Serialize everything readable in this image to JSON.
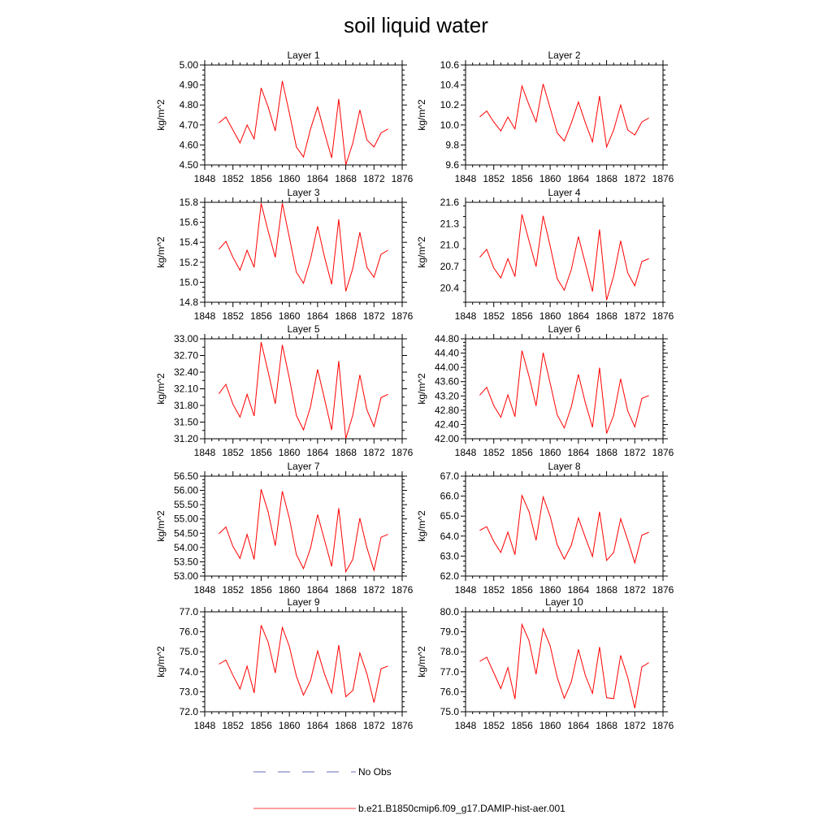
{
  "figure": {
    "title": "soil liquid water"
  },
  "legend": {
    "entries": [
      {
        "label": "No Obs",
        "color": "#6b6bb5",
        "style": "dashed"
      },
      {
        "label": "b.e21.B1850cmip6.f09_g17.DAMIP-hist-aer.001",
        "color": "#ff4040",
        "style": "solid"
      }
    ]
  },
  "chart_data": [
    {
      "type": "line",
      "title": "Layer 1",
      "ylabel": "kg/m^2",
      "xlim": [
        1848,
        1876
      ],
      "xticks": [
        1848,
        1852,
        1856,
        1860,
        1864,
        1868,
        1872,
        1876
      ],
      "ylim": [
        4.5,
        5.0
      ],
      "yticks": [
        "4.50",
        "4.60",
        "4.70",
        "4.80",
        "4.90",
        "5.00"
      ],
      "yminor_per_major": 4,
      "series": [
        {
          "color": "#ff0000",
          "x": [
            1850,
            1851,
            1852,
            1853,
            1854,
            1855,
            1856,
            1857,
            1858,
            1859,
            1860,
            1861,
            1862,
            1863,
            1864,
            1865,
            1866,
            1867,
            1868,
            1869,
            1870,
            1871,
            1872,
            1873,
            1874
          ],
          "y": [
            4.71,
            4.74,
            4.675,
            4.61,
            4.7,
            4.63,
            4.885,
            4.79,
            4.67,
            4.92,
            4.76,
            4.59,
            4.54,
            4.68,
            4.79,
            4.66,
            4.535,
            4.83,
            4.5,
            4.61,
            4.775,
            4.625,
            4.59,
            4.66,
            4.68
          ]
        }
      ]
    },
    {
      "type": "line",
      "title": "Layer 2",
      "ylabel": "kg/m^2",
      "xlim": [
        1848,
        1876
      ],
      "xticks": [
        1848,
        1852,
        1856,
        1860,
        1864,
        1868,
        1872,
        1876
      ],
      "ylim": [
        9.6,
        10.6
      ],
      "yticks": [
        "9.6",
        "9.8",
        "10.0",
        "10.2",
        "10.4",
        "10.6"
      ],
      "yminor_per_major": 4,
      "series": [
        {
          "color": "#ff0000",
          "x": [
            1850,
            1851,
            1852,
            1853,
            1854,
            1855,
            1856,
            1857,
            1858,
            1859,
            1860,
            1861,
            1862,
            1863,
            1864,
            1865,
            1866,
            1867,
            1868,
            1869,
            1870,
            1871,
            1872,
            1873,
            1874
          ],
          "y": [
            10.08,
            10.14,
            10.03,
            9.94,
            10.08,
            9.96,
            10.39,
            10.2,
            10.03,
            10.41,
            10.17,
            9.92,
            9.84,
            10.02,
            10.23,
            10.02,
            9.83,
            10.29,
            9.78,
            9.95,
            10.2,
            9.95,
            9.9,
            10.03,
            10.07
          ]
        }
      ]
    },
    {
      "type": "line",
      "title": "Layer 3",
      "ylabel": "kg/m^2",
      "xlim": [
        1848,
        1876
      ],
      "xticks": [
        1848,
        1852,
        1856,
        1860,
        1864,
        1868,
        1872,
        1876
      ],
      "ylim": [
        14.8,
        15.8
      ],
      "yticks": [
        "14.8",
        "15.0",
        "15.2",
        "15.4",
        "15.6",
        "15.8"
      ],
      "yminor_per_major": 4,
      "series": [
        {
          "color": "#ff0000",
          "x": [
            1850,
            1851,
            1852,
            1853,
            1854,
            1855,
            1856,
            1857,
            1858,
            1859,
            1860,
            1861,
            1862,
            1863,
            1864,
            1865,
            1866,
            1867,
            1868,
            1869,
            1870,
            1871,
            1872,
            1873,
            1874
          ],
          "y": [
            15.33,
            15.41,
            15.25,
            15.12,
            15.32,
            15.15,
            15.79,
            15.51,
            15.25,
            15.79,
            15.45,
            15.1,
            14.99,
            15.23,
            15.56,
            15.25,
            14.98,
            15.63,
            14.91,
            15.14,
            15.5,
            15.15,
            15.05,
            15.28,
            15.32
          ]
        }
      ]
    },
    {
      "type": "line",
      "title": "Layer 4",
      "ylabel": "kg/m^2",
      "xlim": [
        1848,
        1876
      ],
      "xticks": [
        1848,
        1852,
        1856,
        1860,
        1864,
        1868,
        1872,
        1876
      ],
      "ylim": [
        20.2,
        21.6
      ],
      "yticks": [
        "20.4",
        "20.7",
        "21.0",
        "21.3",
        "21.6"
      ],
      "yminor_per_major": 2,
      "series": [
        {
          "color": "#ff0000",
          "x": [
            1850,
            1851,
            1852,
            1853,
            1854,
            1855,
            1856,
            1857,
            1858,
            1859,
            1860,
            1861,
            1862,
            1863,
            1864,
            1865,
            1866,
            1867,
            1868,
            1869,
            1870,
            1871,
            1872,
            1873,
            1874
          ],
          "y": [
            20.83,
            20.94,
            20.68,
            20.54,
            20.81,
            20.56,
            21.43,
            21.06,
            20.7,
            21.41,
            20.99,
            20.53,
            20.37,
            20.66,
            21.12,
            20.74,
            20.35,
            21.22,
            20.23,
            20.57,
            21.06,
            20.61,
            20.43,
            20.77,
            20.81
          ]
        }
      ]
    },
    {
      "type": "line",
      "title": "Layer 5",
      "ylabel": "kg/m^2",
      "xlim": [
        1848,
        1876
      ],
      "xticks": [
        1848,
        1852,
        1856,
        1860,
        1864,
        1868,
        1872,
        1876
      ],
      "ylim": [
        31.2,
        33.0
      ],
      "yticks": [
        "31.20",
        "31.50",
        "31.80",
        "32.10",
        "32.40",
        "32.70",
        "33.00"
      ],
      "yminor_per_major": 2,
      "series": [
        {
          "color": "#ff0000",
          "x": [
            1850,
            1851,
            1852,
            1853,
            1854,
            1855,
            1856,
            1857,
            1858,
            1859,
            1860,
            1861,
            1862,
            1863,
            1864,
            1865,
            1866,
            1867,
            1868,
            1869,
            1870,
            1871,
            1872,
            1873,
            1874
          ],
          "y": [
            32.01,
            32.18,
            31.82,
            31.59,
            32.0,
            31.61,
            32.94,
            32.4,
            31.83,
            32.89,
            32.29,
            31.62,
            31.36,
            31.78,
            32.45,
            31.91,
            31.36,
            32.6,
            31.2,
            31.63,
            32.35,
            31.72,
            31.42,
            31.94,
            32.0
          ]
        }
      ]
    },
    {
      "type": "line",
      "title": "Layer 6",
      "ylabel": "kg/m^2",
      "xlim": [
        1848,
        1876
      ],
      "xticks": [
        1848,
        1852,
        1856,
        1860,
        1864,
        1868,
        1872,
        1876
      ],
      "ylim": [
        42.0,
        44.8
      ],
      "yticks": [
        "42.00",
        "42.40",
        "42.80",
        "43.20",
        "43.60",
        "44.00",
        "44.40",
        "44.80"
      ],
      "yminor_per_major": 4,
      "series": [
        {
          "color": "#ff0000",
          "x": [
            1850,
            1851,
            1852,
            1853,
            1854,
            1855,
            1856,
            1857,
            1858,
            1859,
            1860,
            1861,
            1862,
            1863,
            1864,
            1865,
            1866,
            1867,
            1868,
            1869,
            1870,
            1871,
            1872,
            1873,
            1874
          ],
          "y": [
            43.22,
            43.44,
            42.93,
            42.6,
            43.23,
            42.62,
            44.47,
            43.75,
            42.92,
            44.41,
            43.56,
            42.67,
            42.3,
            42.9,
            43.8,
            43.0,
            42.32,
            43.99,
            42.15,
            42.66,
            43.68,
            42.78,
            42.33,
            43.13,
            43.21
          ]
        }
      ]
    },
    {
      "type": "line",
      "title": "Layer 7",
      "ylabel": "kg/m^2",
      "xlim": [
        1848,
        1876
      ],
      "xticks": [
        1848,
        1852,
        1856,
        1860,
        1864,
        1868,
        1872,
        1876
      ],
      "ylim": [
        53.0,
        56.5
      ],
      "yticks": [
        "53.00",
        "53.50",
        "54.00",
        "54.50",
        "55.00",
        "55.50",
        "56.00",
        "56.50"
      ],
      "yminor_per_major": 4,
      "series": [
        {
          "color": "#ff0000",
          "x": [
            1850,
            1851,
            1852,
            1853,
            1854,
            1855,
            1856,
            1857,
            1858,
            1859,
            1860,
            1861,
            1862,
            1863,
            1864,
            1865,
            1866,
            1867,
            1868,
            1869,
            1870,
            1871,
            1872,
            1873,
            1874
          ],
          "y": [
            54.48,
            54.72,
            54.04,
            53.62,
            54.46,
            53.58,
            56.04,
            55.24,
            54.06,
            55.97,
            55.03,
            53.75,
            53.26,
            53.98,
            55.15,
            54.25,
            53.34,
            55.38,
            53.15,
            53.59,
            55.03,
            53.99,
            53.2,
            54.36,
            54.46
          ]
        }
      ]
    },
    {
      "type": "line",
      "title": "Layer 8",
      "ylabel": "kg/m^2",
      "xlim": [
        1848,
        1876
      ],
      "xticks": [
        1848,
        1852,
        1856,
        1860,
        1864,
        1868,
        1872,
        1876
      ],
      "ylim": [
        62.0,
        67.0
      ],
      "yticks": [
        "62.0",
        "63.0",
        "64.0",
        "65.0",
        "66.0",
        "67.0"
      ],
      "yminor_per_major": 4,
      "series": [
        {
          "color": "#ff0000",
          "x": [
            1850,
            1851,
            1852,
            1853,
            1854,
            1855,
            1856,
            1857,
            1858,
            1859,
            1860,
            1861,
            1862,
            1863,
            1864,
            1865,
            1866,
            1867,
            1868,
            1869,
            1870,
            1871,
            1872,
            1873,
            1874
          ],
          "y": [
            64.28,
            64.47,
            63.73,
            63.18,
            64.2,
            63.07,
            66.03,
            65.23,
            63.79,
            65.96,
            64.99,
            63.57,
            62.85,
            63.55,
            64.91,
            63.92,
            62.98,
            65.22,
            62.78,
            63.18,
            64.87,
            63.8,
            62.66,
            64.05,
            64.19
          ]
        }
      ]
    },
    {
      "type": "line",
      "title": "Layer 9",
      "ylabel": "kg/m^2",
      "xlim": [
        1848,
        1876
      ],
      "xticks": [
        1848,
        1852,
        1856,
        1860,
        1864,
        1868,
        1872,
        1876
      ],
      "ylim": [
        72.0,
        77.0
      ],
      "yticks": [
        "72.0",
        "73.0",
        "74.0",
        "75.0",
        "76.0",
        "77.0"
      ],
      "yminor_per_major": 4,
      "series": [
        {
          "color": "#ff0000",
          "x": [
            1850,
            1851,
            1852,
            1853,
            1854,
            1855,
            1856,
            1857,
            1858,
            1859,
            1860,
            1861,
            1862,
            1863,
            1864,
            1865,
            1866,
            1867,
            1868,
            1869,
            1870,
            1871,
            1872,
            1873,
            1874
          ],
          "y": [
            74.38,
            74.59,
            73.82,
            73.14,
            74.28,
            72.94,
            76.33,
            75.47,
            73.94,
            76.22,
            75.27,
            73.78,
            72.83,
            73.56,
            75.04,
            73.88,
            72.94,
            75.33,
            72.75,
            73.07,
            74.94,
            73.9,
            72.46,
            74.15,
            74.29
          ]
        }
      ]
    },
    {
      "type": "line",
      "title": "Layer 10",
      "ylabel": "kg/m^2",
      "xlim": [
        1848,
        1876
      ],
      "xticks": [
        1848,
        1852,
        1856,
        1860,
        1864,
        1868,
        1872,
        1876
      ],
      "ylim": [
        75.0,
        80.0
      ],
      "yticks": [
        "75.0",
        "76.0",
        "77.0",
        "78.0",
        "79.0",
        "80.0"
      ],
      "yminor_per_major": 4,
      "series": [
        {
          "color": "#ff0000",
          "x": [
            1850,
            1851,
            1852,
            1853,
            1854,
            1855,
            1856,
            1857,
            1858,
            1859,
            1860,
            1861,
            1862,
            1863,
            1864,
            1865,
            1866,
            1867,
            1868,
            1869,
            1870,
            1871,
            1872,
            1873,
            1874
          ],
          "y": [
            77.52,
            77.73,
            76.95,
            76.16,
            77.21,
            75.64,
            79.37,
            78.56,
            76.88,
            79.16,
            78.3,
            76.72,
            75.67,
            76.5,
            78.12,
            76.81,
            75.92,
            78.24,
            75.7,
            75.66,
            77.82,
            76.72,
            75.18,
            77.24,
            77.46
          ]
        }
      ]
    }
  ]
}
